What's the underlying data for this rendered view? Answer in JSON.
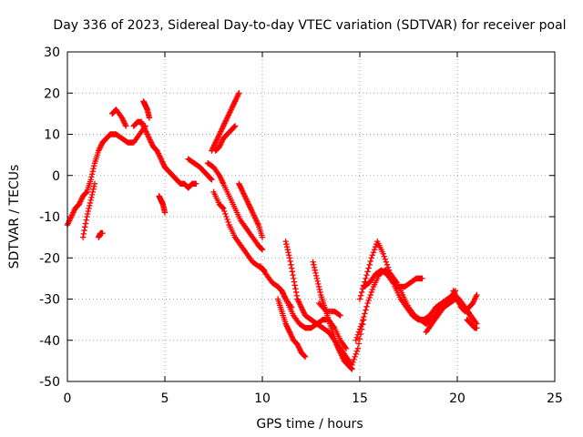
{
  "chart_data": {
    "type": "scatter",
    "title": "Day 336 of 2023, Sidereal Day-to-day VTEC variation (SDTVAR) for receiver poal",
    "xlabel": "GPS time / hours",
    "ylabel": "SDTVAR / TECUs",
    "xlim": [
      0,
      25
    ],
    "ylim": [
      -50,
      30
    ],
    "xticks": [
      0,
      5,
      10,
      15,
      20,
      25
    ],
    "yticks": [
      30,
      20,
      10,
      0,
      -10,
      -20,
      -30,
      -40,
      -50
    ],
    "grid": true,
    "marker": "+",
    "color": "#ff0000",
    "series": [
      {
        "name": "s1",
        "x": [
          0.0,
          0.2,
          0.4,
          0.6,
          0.8,
          1.0,
          1.2,
          1.4,
          1.6,
          1.8,
          2.0,
          2.2,
          2.5,
          2.8,
          3.1,
          3.4,
          3.7,
          4.0
        ],
        "y": [
          -12,
          -10,
          -8,
          -7,
          -5,
          -4,
          -1,
          3,
          6,
          8,
          9,
          10,
          10,
          9,
          8,
          8,
          10,
          12
        ]
      },
      {
        "name": "s2",
        "x": [
          0.8,
          1.0,
          1.2,
          1.4
        ],
        "y": [
          -15,
          -10,
          -6,
          -2
        ]
      },
      {
        "name": "s3",
        "x": [
          1.6,
          1.7,
          1.8
        ],
        "y": [
          -15,
          -14,
          -14
        ]
      },
      {
        "name": "s4",
        "x": [
          2.3,
          2.5,
          2.8,
          3.0
        ],
        "y": [
          15,
          16,
          14,
          12
        ]
      },
      {
        "name": "s5",
        "x": [
          3.4,
          3.6,
          3.8,
          4.0,
          4.2,
          4.4,
          4.6,
          4.8,
          5.0,
          5.2,
          5.4,
          5.6,
          5.8,
          6.0,
          6.2,
          6.4,
          6.6
        ],
        "y": [
          12,
          13,
          13,
          11,
          9,
          7,
          6,
          4,
          2,
          1,
          0,
          -1,
          -2,
          -2,
          -3,
          -2,
          -2
        ]
      },
      {
        "name": "s6",
        "x": [
          3.9,
          4.0,
          4.1,
          4.2
        ],
        "y": [
          18,
          17,
          16,
          14
        ]
      },
      {
        "name": "s7",
        "x": [
          4.7,
          4.8,
          4.9,
          5.0
        ],
        "y": [
          -5,
          -6,
          -7,
          -9
        ]
      },
      {
        "name": "s8",
        "x": [
          6.2,
          6.5,
          6.8,
          7.0,
          7.2,
          7.4
        ],
        "y": [
          4,
          3,
          2,
          1,
          0,
          -1
        ]
      },
      {
        "name": "s9",
        "x": [
          7.4,
          7.6,
          7.8,
          8.0,
          8.2,
          8.4,
          8.6,
          8.8
        ],
        "y": [
          6,
          8,
          10,
          12,
          14,
          16,
          18,
          20
        ]
      },
      {
        "name": "s10",
        "x": [
          7.6,
          7.8,
          8.0,
          8.2,
          8.4,
          8.6
        ],
        "y": [
          6,
          7,
          9,
          10,
          11,
          12
        ]
      },
      {
        "name": "s11",
        "x": [
          7.5,
          7.8,
          8.0,
          8.3,
          8.6,
          8.9,
          9.2,
          9.5,
          9.8,
          10.1
        ],
        "y": [
          -4,
          -7,
          -8,
          -12,
          -15,
          -17,
          -19,
          -21,
          -22,
          -23
        ]
      },
      {
        "name": "s12",
        "x": [
          7.2,
          7.5,
          7.8,
          8.0,
          8.3,
          8.6,
          8.9,
          9.2,
          9.5,
          9.8,
          10.0
        ],
        "y": [
          3,
          2,
          0,
          -2,
          -5,
          -8,
          -11,
          -13,
          -15,
          -17,
          -18
        ]
      },
      {
        "name": "s13",
        "x": [
          8.8,
          9.0,
          9.2,
          9.4,
          9.6,
          9.8,
          10.0
        ],
        "y": [
          -2,
          -4,
          -6,
          -8,
          -10,
          -12,
          -15
        ]
      },
      {
        "name": "s14",
        "x": [
          9.9,
          10.2,
          10.5,
          10.8,
          11.0,
          11.2,
          11.5
        ],
        "y": [
          -22,
          -24,
          -26,
          -27,
          -28,
          -30,
          -32
        ]
      },
      {
        "name": "s15",
        "x": [
          11.2,
          11.4,
          11.6,
          11.8,
          12.0,
          12.2,
          12.5,
          12.8,
          13.1,
          13.4,
          13.7,
          14.0,
          14.3,
          14.6,
          14.9,
          15.2
        ],
        "y": [
          -16,
          -20,
          -25,
          -30,
          -32,
          -34,
          -35,
          -36,
          -37,
          -38,
          -40,
          -42,
          -44,
          -46,
          -42,
          -35
        ]
      },
      {
        "name": "s16",
        "x": [
          11.0,
          11.3,
          11.6,
          11.9,
          12.2,
          12.5,
          12.8,
          13.1,
          13.4,
          13.7,
          14.0,
          14.3
        ],
        "y": [
          -28,
          -31,
          -34,
          -36,
          -37,
          -37,
          -36,
          -35,
          -35,
          -37,
          -40,
          -42
        ]
      },
      {
        "name": "s17",
        "x": [
          10.8,
          11.0,
          11.2,
          11.4,
          11.6,
          11.8,
          12.0,
          12.2
        ],
        "y": [
          -30,
          -33,
          -36,
          -38,
          -40,
          -41,
          -43,
          -44
        ]
      },
      {
        "name": "s18",
        "x": [
          12.6,
          12.8,
          13.0,
          13.2,
          13.4,
          13.6,
          13.8,
          14.0,
          14.2,
          14.4,
          14.6
        ],
        "y": [
          -21,
          -25,
          -29,
          -32,
          -35,
          -38,
          -41,
          -43,
          -45,
          -46,
          -47
        ]
      },
      {
        "name": "s19",
        "x": [
          12.9,
          13.3,
          13.7,
          14.0
        ],
        "y": [
          -31,
          -33,
          -33,
          -34
        ]
      },
      {
        "name": "s20",
        "x": [
          15.0,
          15.3,
          15.6,
          15.9,
          16.2,
          16.5,
          16.8,
          17.1,
          17.4,
          17.7,
          18.0,
          18.3,
          18.6,
          18.9,
          19.2,
          19.5,
          19.8,
          20.1,
          20.4,
          20.7,
          21.0
        ],
        "y": [
          -30,
          -25,
          -20,
          -16,
          -19,
          -23,
          -27,
          -30,
          -32,
          -34,
          -35,
          -35,
          -34,
          -32,
          -31,
          -30,
          -29,
          -30,
          -32,
          -34,
          -36
        ]
      },
      {
        "name": "s21",
        "x": [
          14.8,
          15.1,
          15.4,
          15.7,
          16.0,
          16.3,
          16.6,
          16.9,
          17.2,
          17.5,
          17.8,
          18.1,
          18.4,
          18.7,
          19.0,
          19.3,
          19.6,
          19.9
        ],
        "y": [
          -40,
          -36,
          -31,
          -27,
          -24,
          -23,
          -24,
          -26,
          -29,
          -32,
          -34,
          -35,
          -36,
          -35,
          -33,
          -31,
          -30,
          -28
        ]
      },
      {
        "name": "s22",
        "x": [
          15.2,
          15.5,
          15.8,
          16.1,
          16.4,
          16.7,
          17.0,
          17.3,
          17.6,
          17.9,
          18.2
        ],
        "y": [
          -27,
          -26,
          -24,
          -23,
          -24,
          -26,
          -27,
          -27,
          -26,
          -25,
          -25
        ]
      },
      {
        "name": "s23",
        "x": [
          18.4,
          18.7,
          19.0,
          19.3,
          19.6,
          19.9,
          20.2,
          20.5,
          20.8
        ],
        "y": [
          -38,
          -36,
          -34,
          -32,
          -31,
          -30,
          -31,
          -33,
          -35
        ]
      },
      {
        "name": "s24",
        "x": [
          19.8,
          20.0,
          20.2,
          20.4,
          20.6,
          20.8,
          21.0
        ],
        "y": [
          -28,
          -30,
          -32,
          -33,
          -32,
          -31,
          -29
        ]
      },
      {
        "name": "s25",
        "x": [
          20.5,
          20.7,
          20.9,
          21.0
        ],
        "y": [
          -35,
          -36,
          -37,
          -37
        ]
      }
    ]
  }
}
